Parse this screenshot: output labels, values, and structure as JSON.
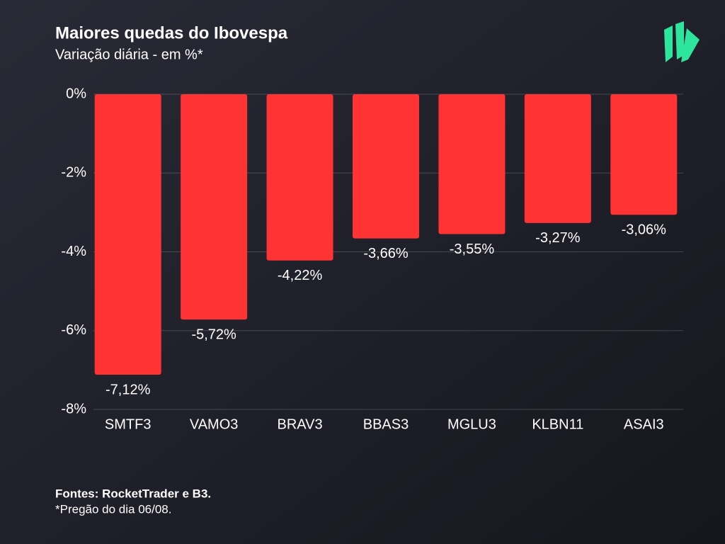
{
  "chart_data": {
    "type": "bar",
    "title": "Maiores quedas do Ibovespa",
    "subtitle": "Variação diária - em %*",
    "categories": [
      "SMTF3",
      "VAMO3",
      "BRAV3",
      "BBAS3",
      "MGLU3",
      "KLBN11",
      "ASAI3"
    ],
    "values": [
      -7.12,
      -5.72,
      -4.22,
      -3.66,
      -3.55,
      -3.27,
      -3.06
    ],
    "value_labels": [
      "-7,12%",
      "-5,72%",
      "-4,22%",
      "-3,66%",
      "-3,55%",
      "-3,27%",
      "-3,06%"
    ],
    "color": "#ff3333",
    "ylim": [
      -8,
      0
    ],
    "yticks": [
      {
        "value": 0,
        "label": "0%"
      },
      {
        "value": -2,
        "label": "-2%"
      },
      {
        "value": -4,
        "label": "-4%"
      },
      {
        "value": -6,
        "label": "-6%"
      },
      {
        "value": -8,
        "label": "-8%"
      }
    ],
    "grid": true,
    "source": "Fontes: RocketTrader e B3.",
    "note": "*Pregão do dia 06/08."
  }
}
